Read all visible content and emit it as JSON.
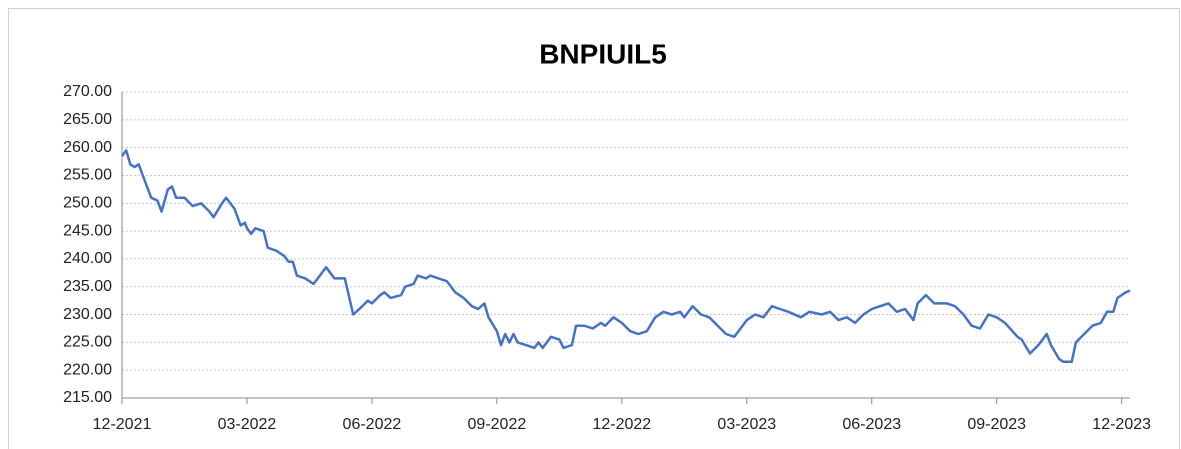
{
  "chart_data": {
    "type": "line",
    "title": "BNPIUIL5",
    "color": "#4472c4",
    "grid": true,
    "xlim": [
      0,
      24.2
    ],
    "xticks": [
      {
        "value": 0,
        "label": "12-2021"
      },
      {
        "value": 3,
        "label": "03-2022"
      },
      {
        "value": 6,
        "label": "06-2022"
      },
      {
        "value": 9,
        "label": "09-2022"
      },
      {
        "value": 12,
        "label": "12-2022"
      },
      {
        "value": 15,
        "label": "03-2023"
      },
      {
        "value": 18,
        "label": "06-2023"
      },
      {
        "value": 21,
        "label": "09-2023"
      },
      {
        "value": 24,
        "label": "12-2023"
      }
    ],
    "ylim": [
      215,
      270
    ],
    "yticks": [
      {
        "value": 215,
        "label": "215.00"
      },
      {
        "value": 220,
        "label": "220.00"
      },
      {
        "value": 225,
        "label": "225.00"
      },
      {
        "value": 230,
        "label": "230.00"
      },
      {
        "value": 235,
        "label": "235.00"
      },
      {
        "value": 240,
        "label": "240.00"
      },
      {
        "value": 245,
        "label": "245.00"
      },
      {
        "value": 250,
        "label": "250.00"
      },
      {
        "value": 255,
        "label": "255.00"
      },
      {
        "value": 260,
        "label": "260.00"
      },
      {
        "value": 265,
        "label": "265.00"
      },
      {
        "value": 270,
        "label": "270.00"
      }
    ],
    "x": [
      0,
      0.1,
      0.2,
      0.3,
      0.4,
      0.5,
      0.7,
      0.85,
      0.95,
      1.1,
      1.2,
      1.3,
      1.5,
      1.7,
      1.9,
      2.1,
      2.2,
      2.4,
      2.5,
      2.7,
      2.85,
      2.95,
      3.0,
      3.1,
      3.2,
      3.4,
      3.5,
      3.7,
      3.9,
      4.0,
      4.1,
      4.2,
      4.4,
      4.6,
      4.7,
      4.9,
      5.1,
      5.35,
      5.55,
      5.7,
      5.9,
      6.0,
      6.2,
      6.3,
      6.45,
      6.7,
      6.8,
      7.0,
      7.1,
      7.3,
      7.4,
      7.6,
      7.8,
      8.0,
      8.2,
      8.4,
      8.55,
      8.7,
      8.8,
      9.0,
      9.1,
      9.2,
      9.3,
      9.4,
      9.5,
      9.7,
      9.9,
      10.0,
      10.1,
      10.3,
      10.5,
      10.6,
      10.8,
      10.9,
      11.1,
      11.3,
      11.5,
      11.6,
      11.8,
      12.0,
      12.2,
      12.4,
      12.6,
      12.8,
      13.0,
      13.2,
      13.4,
      13.5,
      13.7,
      13.9,
      14.1,
      14.3,
      14.5,
      14.7,
      14.8,
      15.0,
      15.2,
      15.4,
      15.6,
      15.8,
      16.0,
      16.3,
      16.5,
      16.8,
      17.0,
      17.2,
      17.4,
      17.6,
      17.8,
      18.0,
      18.2,
      18.4,
      18.6,
      18.8,
      19.0,
      19.1,
      19.3,
      19.5,
      19.8,
      20.0,
      20.2,
      20.4,
      20.6,
      20.8,
      21.0,
      21.2,
      21.5,
      21.6,
      21.8,
      22.0,
      22.2,
      22.3,
      22.5,
      22.6,
      22.8,
      22.9,
      23.1,
      23.3,
      23.5,
      23.65,
      23.8,
      23.9,
      24.1,
      24.2
    ],
    "values": [
      258.5,
      259.5,
      257,
      256.5,
      257,
      255,
      251,
      250.5,
      248.5,
      252.5,
      253,
      251,
      251,
      249.5,
      250,
      248.5,
      247.5,
      250,
      251,
      249,
      246,
      246.5,
      245.5,
      244.5,
      245.5,
      245,
      242,
      241.5,
      240.5,
      239.5,
      239.5,
      237,
      236.5,
      235.5,
      236.5,
      238.5,
      236.5,
      236.5,
      230,
      231,
      232.5,
      232,
      233.5,
      234,
      233,
      233.5,
      235,
      235.5,
      237,
      236.5,
      237,
      236.5,
      236,
      234,
      233,
      231.5,
      231,
      232,
      229.5,
      227,
      224.5,
      226.5,
      225,
      226.5,
      225,
      224.5,
      224,
      225,
      224,
      226,
      225.5,
      224,
      224.5,
      228,
      228,
      227.5,
      228.5,
      228,
      229.5,
      228.5,
      227,
      226.5,
      227,
      229.5,
      230.5,
      230,
      230.5,
      229.5,
      231.5,
      230,
      229.5,
      228,
      226.5,
      226,
      227,
      229,
      230,
      229.5,
      231.5,
      231,
      230.5,
      229.5,
      230.5,
      230,
      230.5,
      229,
      229.5,
      228.5,
      230,
      231,
      231.5,
      232,
      230.5,
      231,
      229,
      232,
      233.5,
      232,
      232,
      231.5,
      230,
      228,
      227.5,
      230,
      229.5,
      228.5,
      226,
      225.5,
      223,
      224.5,
      226.5,
      224.5,
      222,
      221.5,
      221.5,
      225,
      226.5,
      228,
      228.5,
      230.5,
      230.5,
      233,
      234,
      234.3
    ]
  }
}
